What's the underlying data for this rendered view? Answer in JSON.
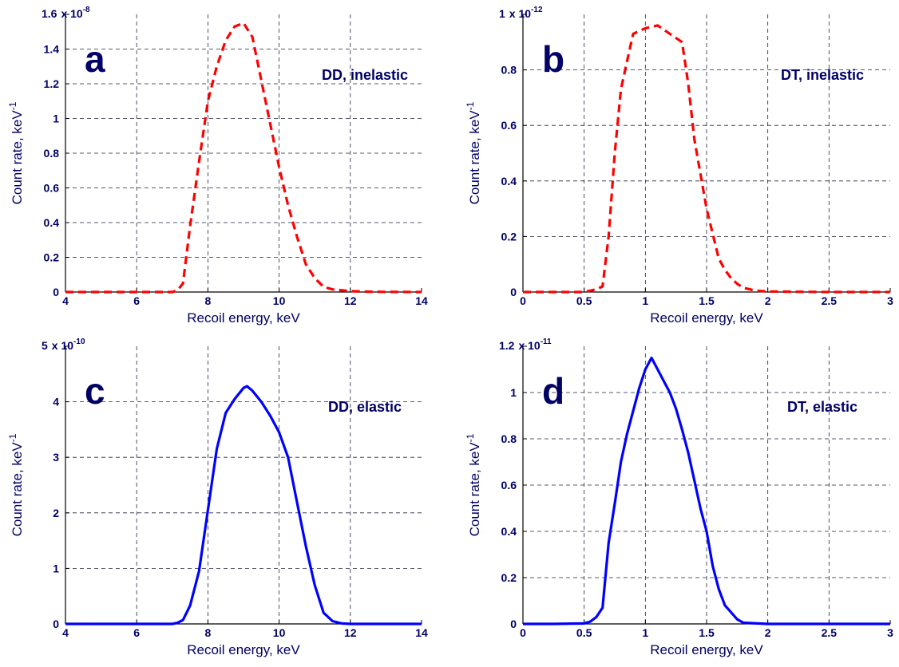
{
  "chart_data": [
    {
      "type": "line",
      "panel_letter": "a",
      "annotation": "DD, inelastic",
      "xlabel": "Recoil energy, keV",
      "ylabel": "Count rate, keV",
      "ylabel_exponent": "-1",
      "scale_prefix": "x 10",
      "scale_exponent": "-8",
      "xlim": [
        4,
        14
      ],
      "ylim": [
        0,
        1.6
      ],
      "xticks": [
        4,
        6,
        8,
        10,
        12,
        14
      ],
      "xtick_labels": [
        "4",
        "6",
        "8",
        "10",
        "12",
        "14"
      ],
      "yticks": [
        0,
        0.2,
        0.4,
        0.6,
        0.8,
        1,
        1.2,
        1.4,
        1.6
      ],
      "ytick_labels": [
        "0",
        "0.2",
        "0.4",
        "0.6",
        "0.8",
        "1",
        "1.2",
        "1.4",
        "1.6"
      ],
      "ytop_label": "1.6",
      "grid": true,
      "series": [
        {
          "color": "#ff0000",
          "line_style": "dashed",
          "x": [
            4,
            5,
            6,
            7,
            7.15,
            7.3,
            7.5,
            7.75,
            8,
            8.25,
            8.5,
            8.75,
            9,
            9.25,
            9.5,
            9.75,
            10,
            10.25,
            10.5,
            10.75,
            11,
            11.25,
            11.5,
            12,
            12.5,
            13,
            14
          ],
          "y": [
            0,
            0,
            0,
            0,
            0.01,
            0.05,
            0.38,
            0.75,
            1.1,
            1.3,
            1.45,
            1.53,
            1.55,
            1.47,
            1.22,
            0.97,
            0.72,
            0.5,
            0.32,
            0.16,
            0.08,
            0.03,
            0.015,
            0.005,
            0.002,
            0.001,
            0
          ]
        }
      ]
    },
    {
      "type": "line",
      "panel_letter": "b",
      "annotation": "DT, inelastic",
      "xlabel": "Recoil energy, keV",
      "ylabel": "Count rate, keV",
      "ylabel_exponent": "-1",
      "scale_prefix": "x 10",
      "scale_exponent": "-12",
      "xlim": [
        0,
        3
      ],
      "ylim": [
        0,
        1
      ],
      "xticks": [
        0,
        0.5,
        1,
        1.5,
        2,
        2.5,
        3
      ],
      "xtick_labels": [
        "0",
        "0.5",
        "1",
        "1.5",
        "2",
        "2.5",
        "3"
      ],
      "yticks": [
        0,
        0.2,
        0.4,
        0.6,
        0.8,
        1
      ],
      "ytick_labels": [
        "0",
        "0.2",
        "0.4",
        "0.6",
        "0.8",
        "1"
      ],
      "ytop_label": "1",
      "grid": true,
      "series": [
        {
          "color": "#ff0000",
          "line_style": "dashed",
          "x": [
            0,
            0.25,
            0.5,
            0.55,
            0.6,
            0.65,
            0.7,
            0.75,
            0.8,
            0.85,
            0.9,
            0.95,
            1.0,
            1.1,
            1.2,
            1.3,
            1.35,
            1.4,
            1.5,
            1.6,
            1.65,
            1.7,
            1.75,
            1.8,
            1.9,
            2.0,
            2.25,
            2.5,
            3.0
          ],
          "y": [
            0,
            0,
            0,
            0.005,
            0.01,
            0.02,
            0.2,
            0.5,
            0.73,
            0.83,
            0.93,
            0.94,
            0.95,
            0.96,
            0.93,
            0.9,
            0.75,
            0.55,
            0.3,
            0.12,
            0.08,
            0.05,
            0.03,
            0.015,
            0.005,
            0.002,
            0.001,
            0.0,
            0
          ]
        }
      ]
    },
    {
      "type": "line",
      "panel_letter": "c",
      "annotation": "DD, elastic",
      "xlabel": "Recoil energy, keV",
      "ylabel": "Count rate, keV",
      "ylabel_exponent": "-1",
      "scale_prefix": "x 10",
      "scale_exponent": "-10",
      "xlim": [
        4,
        14
      ],
      "ylim": [
        0,
        5
      ],
      "xticks": [
        4,
        6,
        8,
        10,
        12,
        14
      ],
      "xtick_labels": [
        "4",
        "6",
        "8",
        "10",
        "12",
        "14"
      ],
      "yticks": [
        0,
        1,
        2,
        3,
        4,
        5
      ],
      "ytick_labels": [
        "0",
        "1",
        "2",
        "3",
        "4",
        "5"
      ],
      "ytop_label": "5",
      "grid": true,
      "series": [
        {
          "color": "#0000ff",
          "line_style": "solid",
          "x": [
            4,
            5,
            6,
            7,
            7.15,
            7.3,
            7.5,
            7.75,
            8,
            8.25,
            8.5,
            8.75,
            9,
            9.1,
            9.25,
            9.5,
            9.75,
            10,
            10.25,
            10.5,
            10.75,
            11,
            11.25,
            11.5,
            11.75,
            12,
            13,
            14
          ],
          "y": [
            0,
            0,
            0,
            0,
            0.02,
            0.07,
            0.33,
            0.95,
            2.05,
            3.15,
            3.8,
            4.05,
            4.25,
            4.28,
            4.2,
            4.0,
            3.75,
            3.45,
            3.0,
            2.2,
            1.4,
            0.7,
            0.2,
            0.05,
            0.01,
            0,
            0,
            0
          ]
        }
      ]
    },
    {
      "type": "line",
      "panel_letter": "d",
      "annotation": "DT, elastic",
      "xlabel": "Recoil energy, keV",
      "ylabel": "Count rate, keV",
      "ylabel_exponent": "-1",
      "scale_prefix": "x 10",
      "scale_exponent": "-11",
      "xlim": [
        0,
        3
      ],
      "ylim": [
        0,
        1.2
      ],
      "xticks": [
        0,
        0.5,
        1,
        1.5,
        2,
        2.5,
        3
      ],
      "xtick_labels": [
        "0",
        "0.5",
        "1",
        "1.5",
        "2",
        "2.5",
        "3"
      ],
      "yticks": [
        0,
        0.2,
        0.4,
        0.6,
        0.8,
        1,
        1.2
      ],
      "ytick_labels": [
        "0",
        "0.2",
        "0.4",
        "0.6",
        "0.8",
        "1",
        "1.2"
      ],
      "ytop_label": "1.2",
      "grid": true,
      "series": [
        {
          "color": "#0000ff",
          "line_style": "solid",
          "x": [
            0,
            0.25,
            0.5,
            0.55,
            0.6,
            0.65,
            0.7,
            0.75,
            0.8,
            0.85,
            0.9,
            0.95,
            1.0,
            1.05,
            1.1,
            1.15,
            1.2,
            1.25,
            1.3,
            1.35,
            1.4,
            1.45,
            1.5,
            1.55,
            1.6,
            1.65,
            1.7,
            1.75,
            1.8,
            2.0,
            2.5,
            3.0
          ],
          "y": [
            0,
            0,
            0.002,
            0.01,
            0.03,
            0.07,
            0.35,
            0.52,
            0.7,
            0.82,
            0.92,
            1.02,
            1.1,
            1.15,
            1.1,
            1.05,
            1.0,
            0.93,
            0.84,
            0.74,
            0.62,
            0.5,
            0.4,
            0.25,
            0.15,
            0.08,
            0.05,
            0.02,
            0.005,
            0.0,
            0,
            0
          ]
        }
      ]
    }
  ]
}
